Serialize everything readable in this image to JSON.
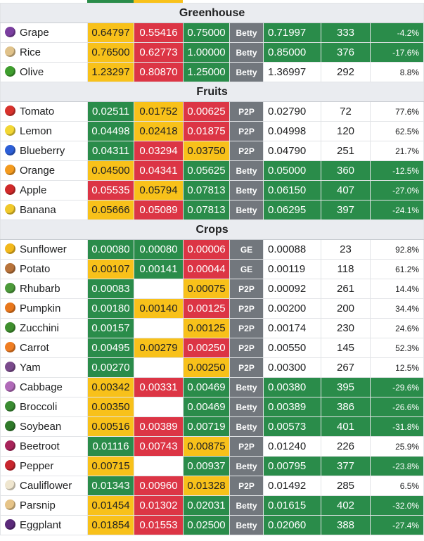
{
  "colors": {
    "green": "#2a8c4a",
    "yellow": "#f8c11a",
    "red": "#dc3545",
    "seller": "#72777d",
    "header": "#eaecf0"
  },
  "sections": [
    {
      "title": "Greenhouse",
      "rows": [
        {
          "name": "Grape",
          "icon": "grape-icon",
          "iconColor": "#7b3fa0",
          "c1": "0.64797",
          "c1c": "y",
          "c2": "0.55416",
          "c2c": "r",
          "c3": "0.75000",
          "c3c": "g",
          "seller": "Betty",
          "price": "0.71997",
          "qty": "333",
          "pct": "-4.2%",
          "good": true
        },
        {
          "name": "Rice",
          "icon": "rice-icon",
          "iconColor": "#e0c28a",
          "c1": "0.76500",
          "c1c": "y",
          "c2": "0.62773",
          "c2c": "r",
          "c3": "1.00000",
          "c3c": "g",
          "seller": "Betty",
          "price": "0.85000",
          "qty": "376",
          "pct": "-17.6%",
          "good": true
        },
        {
          "name": "Olive",
          "icon": "olive-icon",
          "iconColor": "#3f9e2e",
          "c1": "1.23297",
          "c1c": "y",
          "c2": "0.80870",
          "c2c": "r",
          "c3": "1.25000",
          "c3c": "g",
          "seller": "Betty",
          "price": "1.36997",
          "qty": "292",
          "pct": "8.8%",
          "good": false
        }
      ]
    },
    {
      "title": "Fruits",
      "rows": [
        {
          "name": "Tomato",
          "icon": "tomato-icon",
          "iconColor": "#d8322c",
          "c1": "0.02511",
          "c1c": "g",
          "c2": "0.01752",
          "c2c": "y",
          "c3": "0.00625",
          "c3c": "r",
          "seller": "P2P",
          "price": "0.02790",
          "qty": "72",
          "pct": "77.6%",
          "good": false
        },
        {
          "name": "Lemon",
          "icon": "lemon-icon",
          "iconColor": "#f2d634",
          "c1": "0.04498",
          "c1c": "g",
          "c2": "0.02418",
          "c2c": "y",
          "c3": "0.01875",
          "c3c": "r",
          "seller": "P2P",
          "price": "0.04998",
          "qty": "120",
          "pct": "62.5%",
          "good": false
        },
        {
          "name": "Blueberry",
          "icon": "blueberry-icon",
          "iconColor": "#2d5fd6",
          "c1": "0.04311",
          "c1c": "g",
          "c2": "0.03294",
          "c2c": "r",
          "c3": "0.03750",
          "c3c": "y",
          "seller": "P2P",
          "price": "0.04790",
          "qty": "251",
          "pct": "21.7%",
          "good": false
        },
        {
          "name": "Orange",
          "icon": "orange-icon",
          "iconColor": "#f39a1e",
          "c1": "0.04500",
          "c1c": "y",
          "c2": "0.04341",
          "c2c": "r",
          "c3": "0.05625",
          "c3c": "g",
          "seller": "Betty",
          "price": "0.05000",
          "qty": "360",
          "pct": "-12.5%",
          "good": true
        },
        {
          "name": "Apple",
          "icon": "apple-icon",
          "iconColor": "#d02a2a",
          "c1": "0.05535",
          "c1c": "r",
          "c2": "0.05794",
          "c2c": "y",
          "c3": "0.07813",
          "c3c": "g",
          "seller": "Betty",
          "price": "0.06150",
          "qty": "407",
          "pct": "-27.0%",
          "good": true
        },
        {
          "name": "Banana",
          "icon": "banana-icon",
          "iconColor": "#f0c82a",
          "c1": "0.05666",
          "c1c": "y",
          "c2": "0.05089",
          "c2c": "r",
          "c3": "0.07813",
          "c3c": "g",
          "seller": "Betty",
          "price": "0.06295",
          "qty": "397",
          "pct": "-24.1%",
          "good": true
        }
      ]
    },
    {
      "title": "Crops",
      "rows": [
        {
          "name": "Sunflower",
          "icon": "sunflower-icon",
          "iconColor": "#f2b81c",
          "c1": "0.00080",
          "c1c": "g",
          "c2": "0.00080",
          "c2c": "g",
          "c3": "0.00006",
          "c3c": "r",
          "seller": "GE",
          "price": "0.00088",
          "qty": "23",
          "pct": "92.8%",
          "good": false
        },
        {
          "name": "Potato",
          "icon": "potato-icon",
          "iconColor": "#b8733a",
          "c1": "0.00107",
          "c1c": "y",
          "c2": "0.00141",
          "c2c": "g",
          "c3": "0.00044",
          "c3c": "r",
          "seller": "GE",
          "price": "0.00119",
          "qty": "118",
          "pct": "61.2%",
          "good": false
        },
        {
          "name": "Rhubarb",
          "icon": "rhubarb-icon",
          "iconColor": "#4c9a3a",
          "c1": "0.00083",
          "c1c": "g",
          "c2": "",
          "c2c": "w",
          "c3": "0.00075",
          "c3c": "y",
          "seller": "P2P",
          "price": "0.00092",
          "qty": "261",
          "pct": "14.4%",
          "good": false
        },
        {
          "name": "Pumpkin",
          "icon": "pumpkin-icon",
          "iconColor": "#e8771c",
          "c1": "0.00180",
          "c1c": "g",
          "c2": "0.00140",
          "c2c": "y",
          "c3": "0.00125",
          "c3c": "r",
          "seller": "P2P",
          "price": "0.00200",
          "qty": "200",
          "pct": "34.4%",
          "good": false
        },
        {
          "name": "Zucchini",
          "icon": "zucchini-icon",
          "iconColor": "#3f8f2e",
          "c1": "0.00157",
          "c1c": "g",
          "c2": "",
          "c2c": "w",
          "c3": "0.00125",
          "c3c": "y",
          "seller": "P2P",
          "price": "0.00174",
          "qty": "230",
          "pct": "24.6%",
          "good": false
        },
        {
          "name": "Carrot",
          "icon": "carrot-icon",
          "iconColor": "#ef7d22",
          "c1": "0.00495",
          "c1c": "g",
          "c2": "0.00279",
          "c2c": "y",
          "c3": "0.00250",
          "c3c": "r",
          "seller": "P2P",
          "price": "0.00550",
          "qty": "145",
          "pct": "52.3%",
          "good": false
        },
        {
          "name": "Yam",
          "icon": "yam-icon",
          "iconColor": "#7a4a8c",
          "c1": "0.00270",
          "c1c": "g",
          "c2": "",
          "c2c": "w",
          "c3": "0.00250",
          "c3c": "y",
          "seller": "P2P",
          "price": "0.00300",
          "qty": "267",
          "pct": "12.5%",
          "good": false
        },
        {
          "name": "Cabbage",
          "icon": "cabbage-icon",
          "iconColor": "#b06ab8",
          "c1": "0.00342",
          "c1c": "y",
          "c2": "0.00331",
          "c2c": "r",
          "c3": "0.00469",
          "c3c": "g",
          "seller": "Betty",
          "price": "0.00380",
          "qty": "395",
          "pct": "-29.6%",
          "good": true
        },
        {
          "name": "Broccoli",
          "icon": "broccoli-icon",
          "iconColor": "#3a8c32",
          "c1": "0.00350",
          "c1c": "y",
          "c2": "",
          "c2c": "w",
          "c3": "0.00469",
          "c3c": "g",
          "seller": "Betty",
          "price": "0.00389",
          "qty": "386",
          "pct": "-26.6%",
          "good": true
        },
        {
          "name": "Soybean",
          "icon": "soybean-icon",
          "iconColor": "#2f7a2a",
          "c1": "0.00516",
          "c1c": "y",
          "c2": "0.00389",
          "c2c": "r",
          "c3": "0.00719",
          "c3c": "g",
          "seller": "Betty",
          "price": "0.00573",
          "qty": "401",
          "pct": "-31.8%",
          "good": true
        },
        {
          "name": "Beetroot",
          "icon": "beetroot-icon",
          "iconColor": "#a8245a",
          "c1": "0.01116",
          "c1c": "g",
          "c2": "0.00743",
          "c2c": "r",
          "c3": "0.00875",
          "c3c": "y",
          "seller": "P2P",
          "price": "0.01240",
          "qty": "226",
          "pct": "25.9%",
          "good": false
        },
        {
          "name": "Pepper",
          "icon": "pepper-icon",
          "iconColor": "#c8262e",
          "c1": "0.00715",
          "c1c": "y",
          "c2": "",
          "c2c": "w",
          "c3": "0.00937",
          "c3c": "g",
          "seller": "Betty",
          "price": "0.00795",
          "qty": "377",
          "pct": "-23.8%",
          "good": true
        },
        {
          "name": "Cauliflower",
          "icon": "cauliflower-icon",
          "iconColor": "#efe6cf",
          "c1": "0.01343",
          "c1c": "g",
          "c2": "0.00960",
          "c2c": "r",
          "c3": "0.01328",
          "c3c": "y",
          "seller": "P2P",
          "price": "0.01492",
          "qty": "285",
          "pct": "6.5%",
          "good": false
        },
        {
          "name": "Parsnip",
          "icon": "parsnip-icon",
          "iconColor": "#e6c488",
          "c1": "0.01454",
          "c1c": "y",
          "c2": "0.01302",
          "c2c": "r",
          "c3": "0.02031",
          "c3c": "g",
          "seller": "Betty",
          "price": "0.01615",
          "qty": "402",
          "pct": "-32.0%",
          "good": true
        },
        {
          "name": "Eggplant",
          "icon": "eggplant-icon",
          "iconColor": "#5b2a7a",
          "c1": "0.01854",
          "c1c": "y",
          "c2": "0.01553",
          "c2c": "r",
          "c3": "0.02500",
          "c3c": "g",
          "seller": "Betty",
          "price": "0.02060",
          "qty": "388",
          "pct": "-27.4%",
          "good": true
        }
      ]
    }
  ]
}
